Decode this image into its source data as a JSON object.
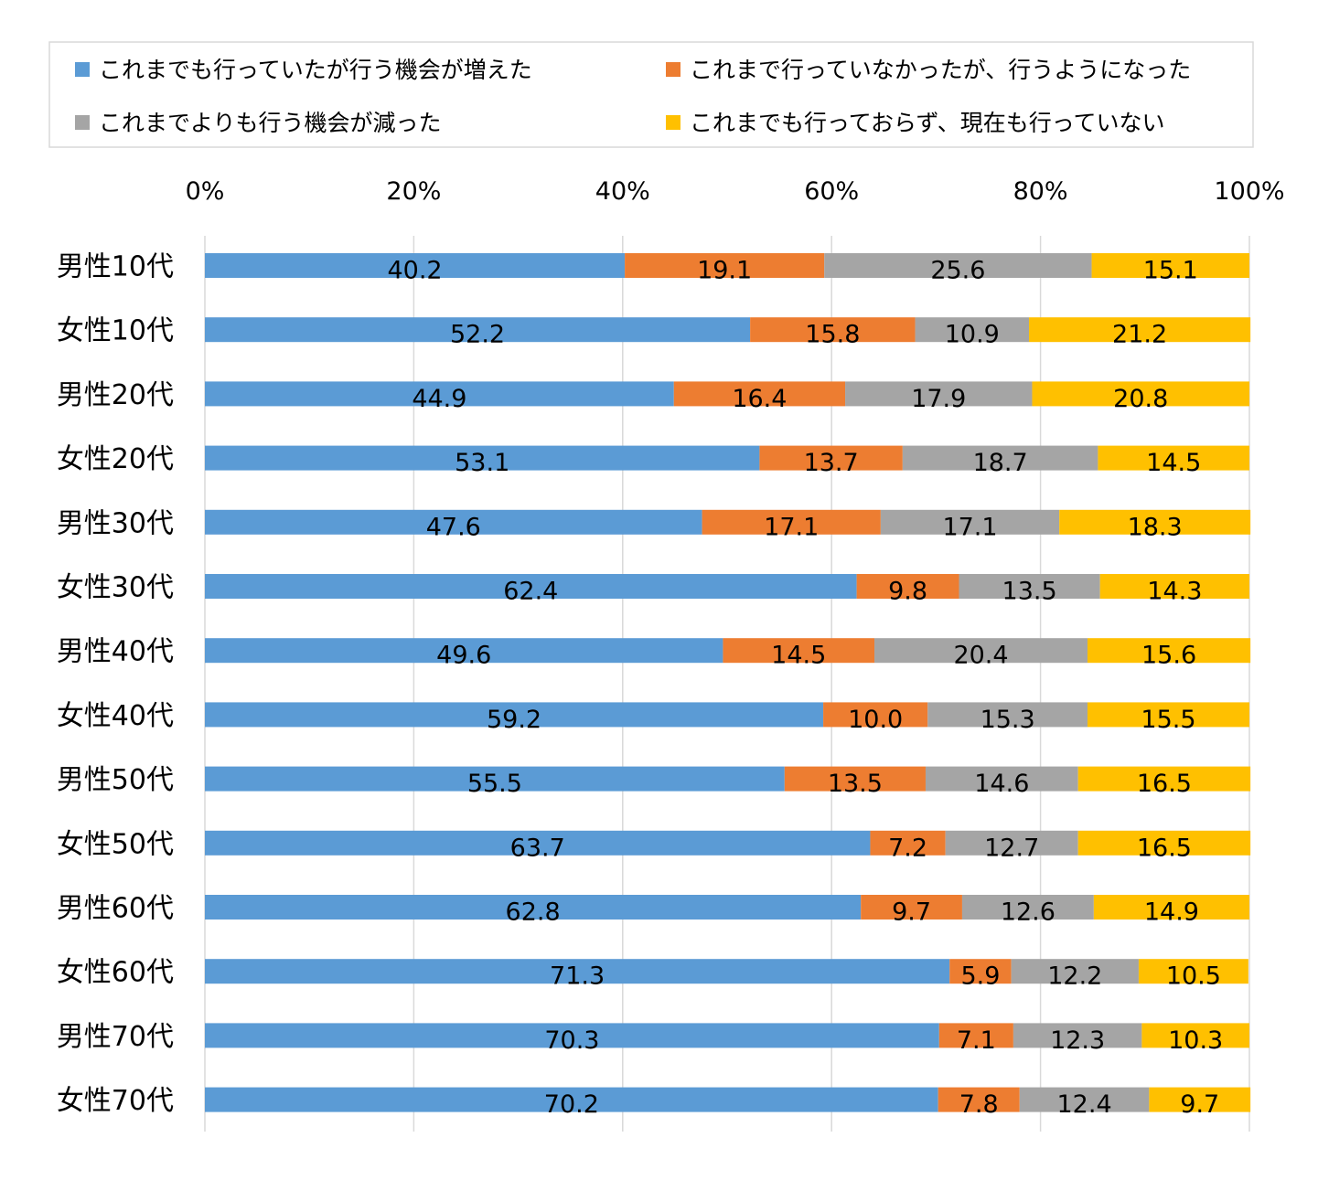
{
  "chart_data": {
    "type": "bar",
    "orientation": "horizontal",
    "stacked": "percent",
    "xlim": [
      0,
      100
    ],
    "x_ticks": [
      "0%",
      "20%",
      "40%",
      "60%",
      "80%",
      "100%"
    ],
    "x_tick_values": [
      0,
      20,
      40,
      60,
      80,
      100
    ],
    "grid": true,
    "legend_position": "top",
    "categories": [
      "男性10代",
      "女性10代",
      "男性20代",
      "女性20代",
      "男性30代",
      "女性30代",
      "男性40代",
      "女性40代",
      "男性50代",
      "女性50代",
      "男性60代",
      "女性60代",
      "男性70代",
      "女性70代"
    ],
    "series": [
      {
        "name": "これまでも行っていたが行う機会が増えた",
        "color": "#5b9bd5",
        "values": [
          40.2,
          52.2,
          44.9,
          53.1,
          47.6,
          62.4,
          49.6,
          59.2,
          55.5,
          63.7,
          62.8,
          71.3,
          70.3,
          70.2
        ]
      },
      {
        "name": "これまで行っていなかったが、行うようになった",
        "color": "#ed7d31",
        "values": [
          19.1,
          15.8,
          16.4,
          13.7,
          17.1,
          9.8,
          14.5,
          10.0,
          13.5,
          7.2,
          9.7,
          5.9,
          7.1,
          7.8
        ]
      },
      {
        "name": "これまでよりも行う機会が減った",
        "color": "#a5a5a5",
        "values": [
          25.6,
          10.9,
          17.9,
          18.7,
          17.1,
          13.5,
          20.4,
          15.3,
          14.6,
          12.7,
          12.6,
          12.2,
          12.3,
          12.4
        ]
      },
      {
        "name": "これまでも行っておらず、現在も行っていない",
        "color": "#ffc000",
        "values": [
          15.1,
          21.2,
          20.8,
          14.5,
          18.3,
          14.3,
          15.6,
          15.5,
          16.5,
          16.5,
          14.9,
          10.5,
          10.3,
          9.7
        ]
      }
    ],
    "data_labels": [
      [
        "40.2",
        "52.2",
        "44.9",
        "53.1",
        "47.6",
        "62.4",
        "49.6",
        "59.2",
        "55.5",
        "63.7",
        "62.8",
        "71.3",
        "70.3",
        "70.2"
      ],
      [
        "19.1",
        "15.8",
        "16.4",
        "13.7",
        "17.1",
        "9.8",
        "14.5",
        "10.0",
        "13.5",
        "7.2",
        "9.7",
        "5.9",
        "7.1",
        "7.8"
      ],
      [
        "25.6",
        "10.9",
        "17.9",
        "18.7",
        "17.1",
        "13.5",
        "20.4",
        "15.3",
        "14.6",
        "12.7",
        "12.6",
        "12.2",
        "12.3",
        "12.4"
      ],
      [
        "15.1",
        "21.2",
        "20.8",
        "14.5",
        "18.3",
        "14.3",
        "15.6",
        "15.5",
        "16.5",
        "16.5",
        "14.9",
        "10.5",
        "10.3",
        "9.7"
      ]
    ]
  }
}
